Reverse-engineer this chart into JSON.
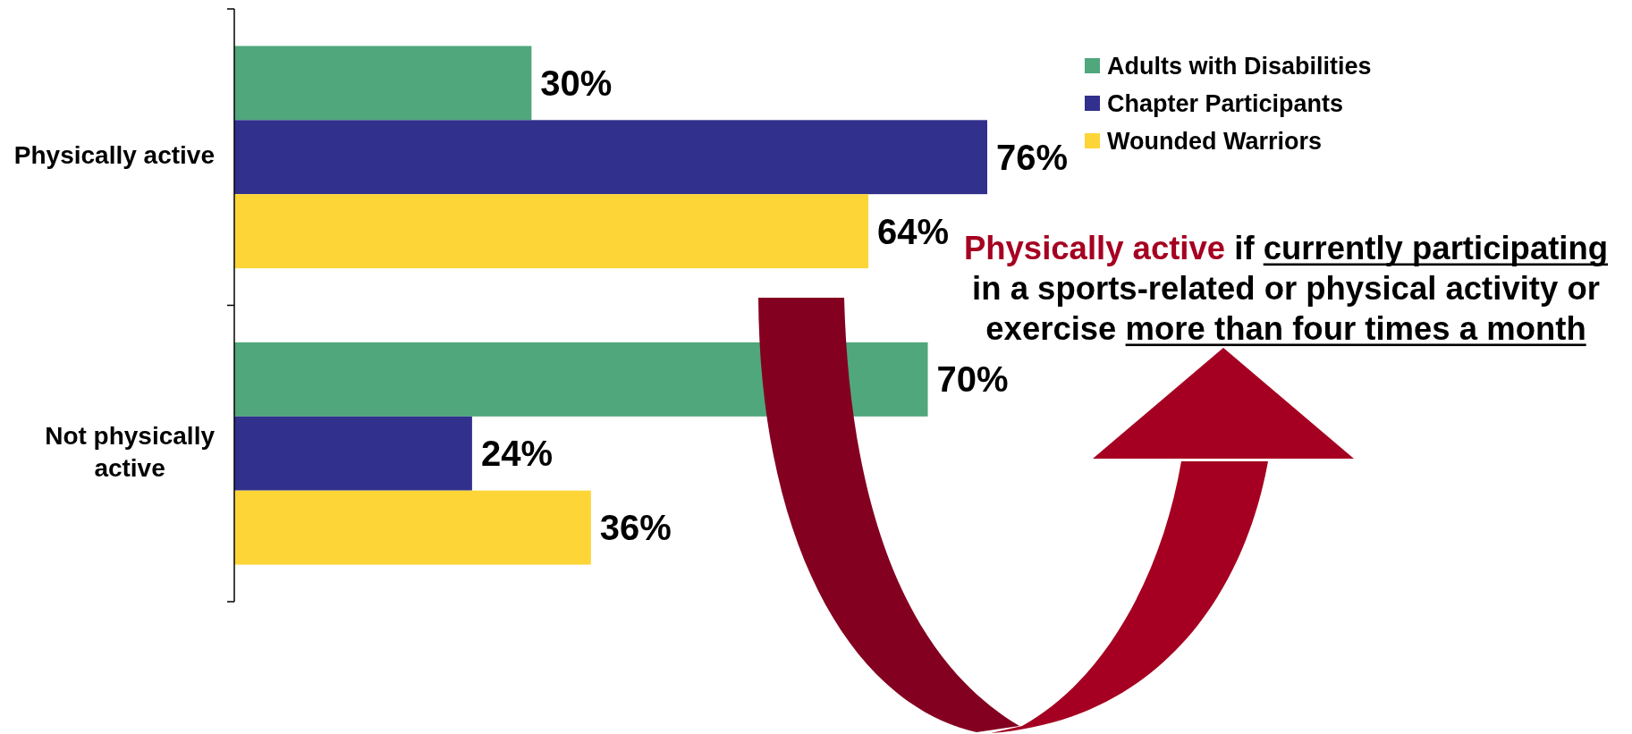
{
  "chart_data": {
    "type": "bar",
    "orientation": "horizontal",
    "categories": [
      "Physically active",
      "Not physically active"
    ],
    "series": [
      {
        "name": "Adults with Disabilities",
        "color": "#50a77b",
        "values": [
          30,
          70
        ],
        "value_labels": [
          "30%",
          "70%"
        ]
      },
      {
        "name": "Chapter Participants",
        "color": "#31308c",
        "values": [
          76,
          24
        ],
        "value_labels": [
          "76%",
          "24%"
        ]
      },
      {
        "name": "Wounded Warriors",
        "color": "#fed536",
        "values": [
          64,
          36
        ],
        "value_labels": [
          "64%",
          "36%"
        ]
      }
    ],
    "legend": "top right",
    "annotations": [
      "Physically active if currently participating in a sports-related or physical activity or exercise more than four times a month"
    ]
  }
}
